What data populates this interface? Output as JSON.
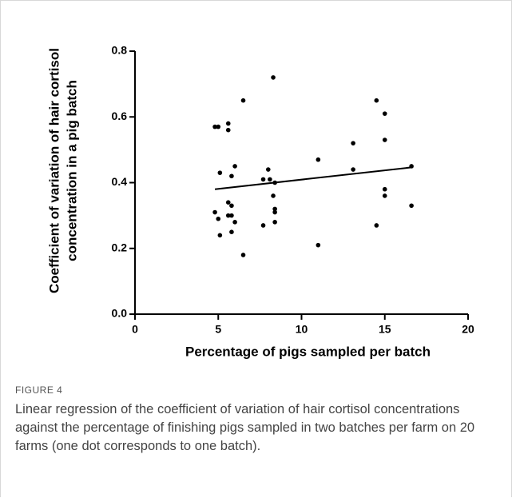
{
  "chart_data": {
    "type": "scatter",
    "xlabel": "Percentage of pigs sampled per batch",
    "ylabel": [
      "Coefficient of variation of hair cortisol",
      "concentration in a pig batch"
    ],
    "x": [
      4.8,
      5.0,
      5.1,
      4.8,
      5.0,
      5.1,
      5.6,
      5.6,
      5.8,
      5.6,
      5.8,
      5.6,
      5.8,
      6.0,
      5.8,
      6.0,
      6.5,
      6.5,
      8.0,
      7.7,
      8.1,
      7.7,
      8.3,
      8.4,
      8.3,
      8.4,
      8.4,
      8.4,
      11.0,
      11.0,
      13.1,
      13.1,
      14.5,
      14.5,
      15.0,
      15.0,
      15.0,
      15.0,
      16.6,
      16.6
    ],
    "y": [
      0.57,
      0.57,
      0.43,
      0.31,
      0.29,
      0.24,
      0.58,
      0.56,
      0.42,
      0.34,
      0.33,
      0.3,
      0.3,
      0.28,
      0.25,
      0.45,
      0.65,
      0.18,
      0.44,
      0.41,
      0.41,
      0.27,
      0.72,
      0.4,
      0.36,
      0.32,
      0.31,
      0.28,
      0.47,
      0.21,
      0.52,
      0.44,
      0.65,
      0.27,
      0.61,
      0.53,
      0.38,
      0.36,
      0.45,
      0.33
    ],
    "color": "#000000",
    "fit_line": {
      "x": [
        4.8,
        16.7
      ],
      "y": [
        0.38,
        0.447
      ]
    },
    "xlim": [
      0,
      20
    ],
    "xticks": [
      0,
      5,
      10,
      15,
      20
    ],
    "ylim": [
      0,
      0.8
    ],
    "yticks": [
      {
        "value": 0,
        "label": "0.0"
      },
      0.2,
      0.4,
      0.6,
      0.8
    ]
  },
  "caption": {
    "label": "FIGURE 4",
    "text": "Linear regression of the coefficient of variation of hair cortisol concentrations against the percentage of finishing pigs sampled in two batches per farm on 20 farms (one dot corresponds to one batch)."
  }
}
